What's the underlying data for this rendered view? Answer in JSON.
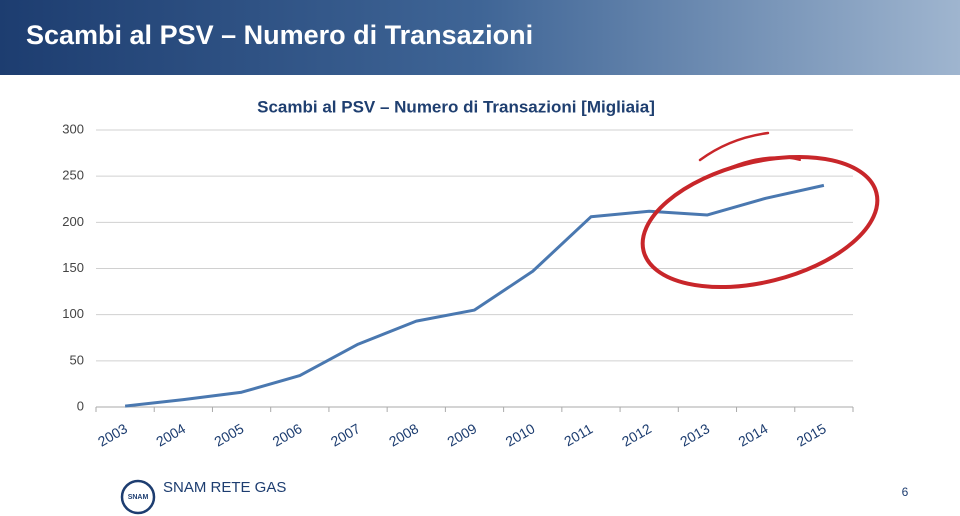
{
  "header": {
    "title": "Scambi al PSV – Numero di Transazioni"
  },
  "chart_data": {
    "type": "line",
    "title": "Scambi al PSV – Numero di Transazioni [Migliaia]",
    "categories": [
      "2003",
      "2004",
      "2005",
      "2006",
      "2007",
      "2008",
      "2009",
      "2010",
      "2011",
      "2012",
      "2013",
      "2014",
      "2015"
    ],
    "series": [
      {
        "color": "#4a78b0",
        "values": [
          1,
          8,
          16,
          34,
          68,
          93,
          105,
          147,
          206,
          212,
          208,
          226,
          240
        ]
      }
    ],
    "ylim": [
      0,
      300
    ],
    "yticks": [
      0,
      50,
      100,
      150,
      200,
      250,
      300
    ],
    "grid": true
  },
  "footer": {
    "logo_badge": "SNAM",
    "logo_text": "SNAM RETE GAS",
    "page": "6"
  }
}
